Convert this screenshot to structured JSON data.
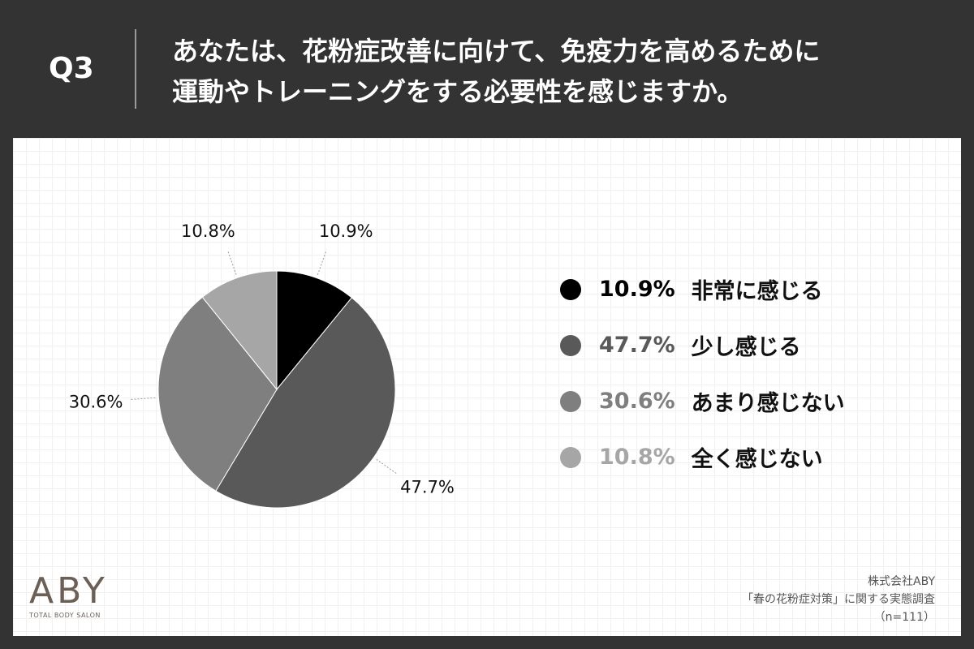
{
  "header": {
    "q_label": "Q3",
    "title_line1": "あなたは、花粉症改善に向けて、免疫力を高めるために",
    "title_line2": "運動やトレーニングをする必要性を感じますか。"
  },
  "chart_data": {
    "type": "pie",
    "slices": [
      {
        "label": "非常に感じる",
        "value": 10.9,
        "display": "10.9%",
        "color": "#000000"
      },
      {
        "label": "少し感じる",
        "value": 47.7,
        "display": "47.7%",
        "color": "#595959"
      },
      {
        "label": "あまり感じない",
        "value": 30.6,
        "display": "30.6%",
        "color": "#7f7f7f"
      },
      {
        "label": "全く感じない",
        "value": 10.8,
        "display": "10.8%",
        "color": "#a6a6a6"
      }
    ],
    "legend_placement": "right"
  },
  "legend": [
    {
      "pct": "10.9%",
      "label": "非常に感じる",
      "color": "#000000"
    },
    {
      "pct": "47.7%",
      "label": "少し感じる",
      "color": "#595959"
    },
    {
      "pct": "30.6%",
      "label": "あまり感じない",
      "color": "#7f7f7f"
    },
    {
      "pct": "10.8%",
      "label": "全く感じない",
      "color": "#a6a6a6"
    }
  ],
  "logo": {
    "mark": "ABY",
    "subtitle": "TOTAL BODY SALON"
  },
  "source": {
    "company": "株式会社ABY",
    "survey": "「春の花粉症対策」に関する実態調査",
    "sample": "（n=111）"
  }
}
